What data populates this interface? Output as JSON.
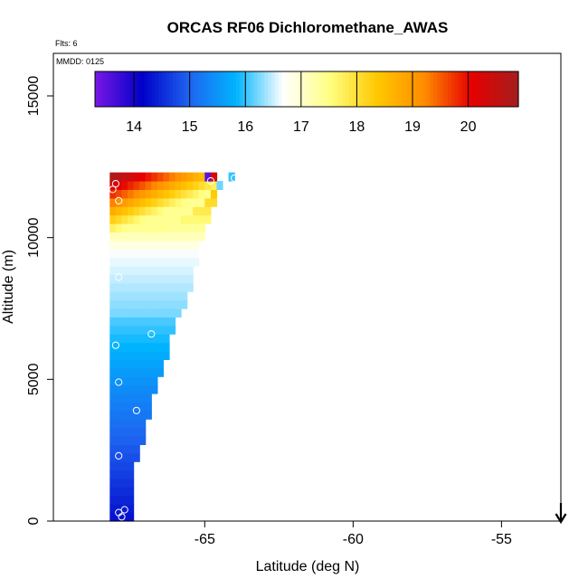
{
  "chart_data": {
    "type": "heatmap",
    "title": "ORCAS RF06 Dichloromethane_AWAS",
    "subtitle_flights": "Flts: 6",
    "subtitle_date": "MMDD: 0125",
    "xlabel": "Latitude (deg N)",
    "ylabel": "Altitude (m)",
    "xlim": [
      -70.1,
      -53.0
    ],
    "ylim": [
      0,
      16500
    ],
    "x_ticks": [
      -65,
      -60,
      -55
    ],
    "x_tick_labels": [
      "-65",
      "-60",
      "-55"
    ],
    "y_ticks": [
      0,
      5000,
      10000,
      15000
    ],
    "y_tick_labels": [
      "0",
      "5000",
      "10000",
      "15000"
    ],
    "colorbar": {
      "range": [
        13.3,
        20.9
      ],
      "ticks": [
        14,
        15,
        16,
        17,
        18,
        19,
        20
      ],
      "tick_labels": [
        "14",
        "15",
        "16",
        "17",
        "18",
        "19",
        "20"
      ],
      "colors": [
        "#7a17e6",
        "#0000c8",
        "#1e64f0",
        "#00b4ff",
        "#ffffff",
        "#ffff80",
        "#ffc800",
        "#ff8c00",
        "#e60000",
        "#a51e1e"
      ]
    },
    "grid": false,
    "cell_width_deg": 0.2,
    "cell_height_m": 300,
    "columns": [
      {
        "lat": -68.1,
        "max_alt": 12000
      },
      {
        "lat": -67.9,
        "max_alt": 12000
      },
      {
        "lat": -67.7,
        "max_alt": 12000
      },
      {
        "lat": -67.5,
        "max_alt": 12000
      },
      {
        "lat": -67.3,
        "max_alt": 12000
      },
      {
        "lat": -67.1,
        "max_alt": 12000
      },
      {
        "lat": -66.9,
        "max_alt": 12000
      },
      {
        "lat": -66.7,
        "max_alt": 12000
      },
      {
        "lat": -66.5,
        "max_alt": 12000
      },
      {
        "lat": -66.3,
        "max_alt": 12000
      },
      {
        "lat": -66.1,
        "max_alt": 12000
      },
      {
        "lat": -65.9,
        "max_alt": 12000
      },
      {
        "lat": -65.7,
        "max_alt": 12000
      },
      {
        "lat": -65.5,
        "max_alt": 12000
      },
      {
        "lat": -65.3,
        "max_alt": 12000
      },
      {
        "lat": -65.1,
        "max_alt": 12000
      },
      {
        "lat": -64.9,
        "max_alt": 12000
      },
      {
        "lat": -64.7,
        "max_alt": 12000
      }
    ],
    "column_min_alt": [
      0,
      0,
      0,
      0,
      2100,
      2700,
      3600,
      4500,
      5100,
      5700,
      6600,
      7200,
      7500,
      8100,
      9000,
      9900,
      10500,
      11100
    ],
    "sparse_cells": [
      {
        "lat": -64.9,
        "alt": 12000,
        "value": 13.5
      },
      {
        "lat": -64.7,
        "alt": 12000,
        "value": 20.3
      },
      {
        "lat": -64.5,
        "alt": 11700,
        "value": 16.2
      },
      {
        "lat": -64.1,
        "alt": 12000,
        "value": 16.0
      }
    ],
    "sample_points": [
      {
        "lat": -68.0,
        "alt": 11900
      },
      {
        "lat": -68.1,
        "alt": 11700
      },
      {
        "lat": -67.9,
        "alt": 11300
      },
      {
        "lat": -67.9,
        "alt": 8600
      },
      {
        "lat": -68.0,
        "alt": 6200
      },
      {
        "lat": -66.8,
        "alt": 6600
      },
      {
        "lat": -67.9,
        "alt": 4900
      },
      {
        "lat": -67.3,
        "alt": 3900
      },
      {
        "lat": -67.9,
        "alt": 2300
      },
      {
        "lat": -67.9,
        "alt": 300
      },
      {
        "lat": -67.7,
        "alt": 400
      },
      {
        "lat": -67.8,
        "alt": 150
      },
      {
        "lat": -64.8,
        "alt": 12000
      },
      {
        "lat": -64.0,
        "alt": 12100
      }
    ],
    "arrow_lat": -53.0
  }
}
